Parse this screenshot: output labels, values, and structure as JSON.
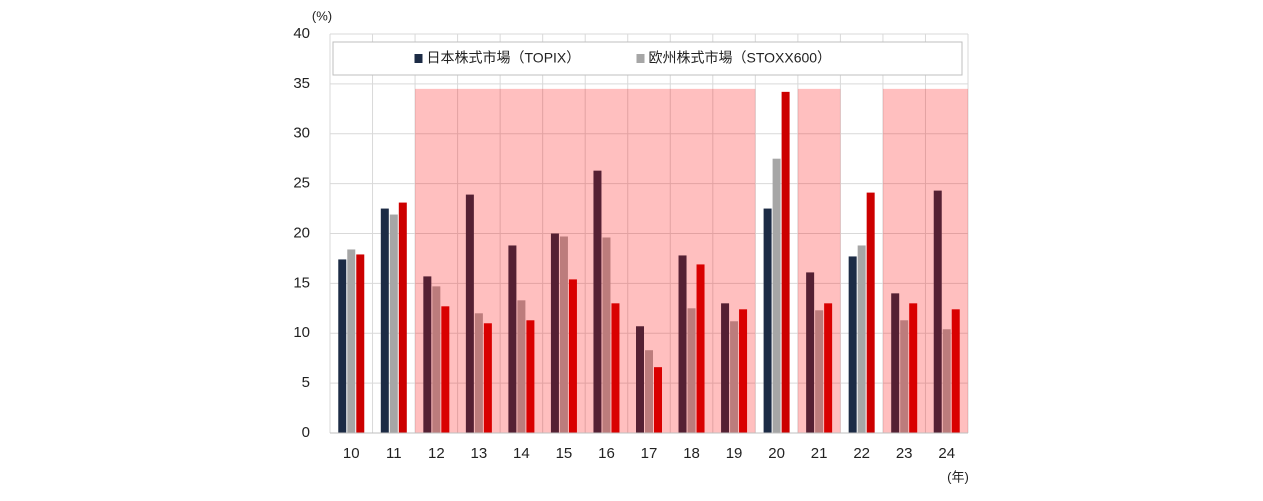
{
  "chart_data": {
    "type": "bar",
    "y_unit": "(%)",
    "x_unit": "(年)",
    "categories": [
      "10",
      "11",
      "12",
      "13",
      "14",
      "15",
      "16",
      "17",
      "18",
      "19",
      "20",
      "21",
      "22",
      "23",
      "24"
    ],
    "series": [
      {
        "name": "日本株式市場（TOPIX）",
        "color": "#1c2b45",
        "values": [
          17.4,
          22.5,
          15.7,
          23.9,
          18.8,
          20.0,
          26.3,
          10.7,
          17.8,
          13.0,
          22.5,
          16.1,
          17.7,
          14.0,
          24.3
        ]
      },
      {
        "name": "欧州株式市場（STOXX600）",
        "color": "#a6a6a6",
        "values": [
          18.4,
          21.9,
          14.7,
          12.0,
          13.3,
          19.7,
          19.6,
          8.3,
          12.5,
          11.2,
          27.5,
          12.3,
          18.8,
          11.3,
          10.4
        ]
      },
      {
        "color": "#cc0000",
        "values": [
          17.9,
          23.1,
          12.7,
          11.0,
          11.3,
          15.4,
          13.0,
          6.6,
          16.9,
          12.4,
          34.2,
          13.0,
          24.1,
          13.0,
          12.4
        ]
      }
    ],
    "ylim": [
      0,
      40
    ],
    "yticks": [
      0,
      5,
      10,
      15,
      20,
      25,
      30,
      35,
      40
    ],
    "grid": true,
    "legend": "top",
    "shading": {
      "color": "rgba(255,0,0,0.25)",
      "top": 34.5,
      "ranges": [
        [
          2,
          9
        ],
        [
          11,
          11
        ],
        [
          13,
          14
        ]
      ]
    }
  }
}
